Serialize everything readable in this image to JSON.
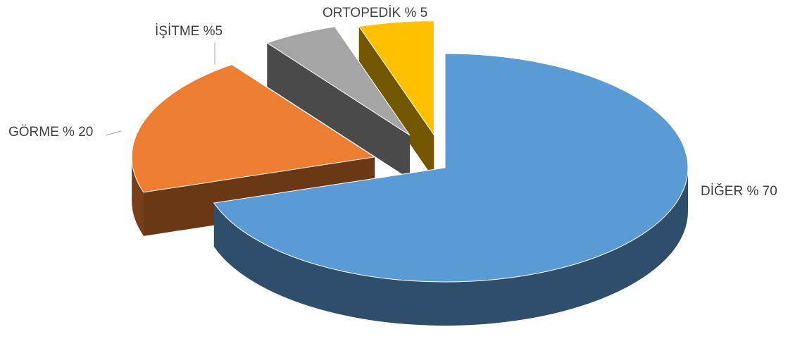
{
  "chart_data": {
    "type": "pie3d",
    "values": [
      70,
      20,
      5,
      5
    ],
    "value_labels": [
      "DİĞER % 70",
      "GÖRME % 20",
      "İŞİTME %5",
      "ORTOPEDİK % 5"
    ],
    "colors": [
      "#5b9bd5",
      "#ed7d31",
      "#a5a5a5",
      "#ffc000"
    ]
  }
}
